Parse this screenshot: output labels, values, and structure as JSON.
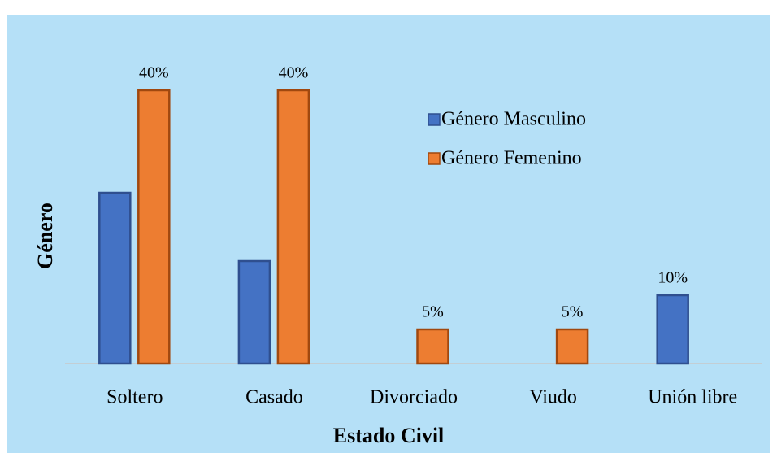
{
  "chart_data": {
    "type": "bar",
    "x_label": "Estado Civil",
    "y_label": "Género",
    "categories": [
      "Soltero",
      "Casado",
      "Divorciado",
      "Viudo",
      "Unión libre"
    ],
    "series": [
      {
        "name": "Género Masculino",
        "color": "#4472c4",
        "values": [
          25,
          15,
          null,
          null,
          10
        ],
        "value_labels": [
          null,
          null,
          null,
          null,
          "10%"
        ]
      },
      {
        "name": "Género Femenino",
        "color": "#ed7d31",
        "values": [
          40,
          40,
          5,
          5,
          null
        ],
        "value_labels": [
          "40%",
          "40%",
          "5%",
          "5%",
          null
        ]
      }
    ],
    "legend": "upper right"
  }
}
